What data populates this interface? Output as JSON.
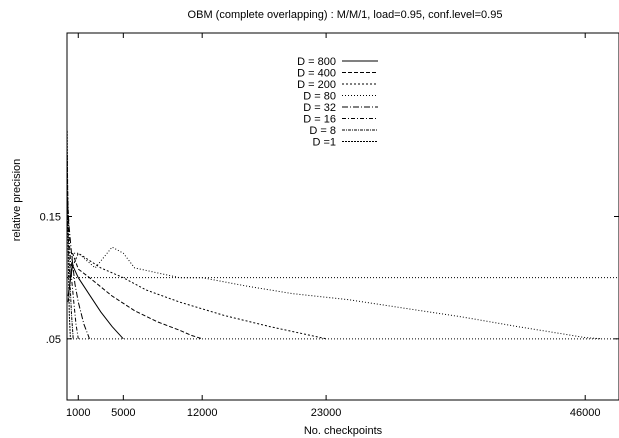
{
  "chart_data": {
    "type": "line",
    "title": "OBM (complete overlapping) : M/M/1, load=0.95, conf.level=0.95",
    "xlabel": "No. checkpoints",
    "ylabel": "relative precision",
    "xlim": [
      0,
      49000
    ],
    "ylim": [
      0,
      0.3
    ],
    "x_ticks": [
      {
        "value": 1000,
        "label": "1000"
      },
      {
        "value": 5000,
        "label": "5000"
      },
      {
        "value": 12000,
        "label": "12000"
      },
      {
        "value": 23000,
        "label": "23000"
      },
      {
        "value": 46000,
        "label": "46000"
      }
    ],
    "y_ticks": [
      {
        "value": 0.05,
        "label": ".05"
      },
      {
        "value": 0.15,
        "label": "0.15"
      }
    ],
    "hlines": [
      {
        "value": 0.05,
        "style": "dotted"
      },
      {
        "value": 0.1,
        "style": "dotted"
      }
    ],
    "grid": false,
    "legend_position": "top-center",
    "series": [
      {
        "name": "D = 800",
        "dash": "",
        "x": [
          100,
          500,
          1000,
          2000,
          3000,
          4000,
          5000
        ],
        "y": [
          0.085,
          0.11,
          0.1,
          0.086,
          0.072,
          0.06,
          0.05
        ]
      },
      {
        "name": "D = 400",
        "dash": "4 2",
        "x": [
          100,
          500,
          1000,
          2000,
          4000,
          6000,
          8000,
          10000,
          11000,
          12000
        ],
        "y": [
          0.08,
          0.12,
          0.107,
          0.1,
          0.085,
          0.073,
          0.064,
          0.057,
          0.053,
          0.05
        ]
      },
      {
        "name": "D = 200",
        "dash": "2 2",
        "x": [
          100,
          1000,
          3000,
          5000,
          7000,
          10000,
          14000,
          18000,
          21000,
          23000
        ],
        "y": [
          0.1,
          0.12,
          0.108,
          0.1,
          0.09,
          0.08,
          0.069,
          0.06,
          0.054,
          0.05
        ]
      },
      {
        "name": "D = 80",
        "dash": "1 2",
        "x": [
          100,
          1000,
          2500,
          4000,
          5000,
          6000,
          8000,
          10000,
          12000,
          16000,
          20000,
          25000,
          30000,
          35000,
          40000,
          44000,
          46000,
          47500
        ],
        "y": [
          0.12,
          0.12,
          0.108,
          0.125,
          0.12,
          0.108,
          0.104,
          0.1,
          0.1,
          0.093,
          0.087,
          0.082,
          0.075,
          0.068,
          0.06,
          0.054,
          0.051,
          0.05
        ]
      },
      {
        "name": "D = 32",
        "dash": "6 2 1 2",
        "x": [
          50,
          200,
          400,
          700,
          1000,
          1500,
          2000
        ],
        "y": [
          0.16,
          0.14,
          0.12,
          0.095,
          0.08,
          0.062,
          0.05
        ]
      },
      {
        "name": "D = 16",
        "dash": "4 2 1 2",
        "x": [
          50,
          200,
          400,
          600,
          800,
          1000
        ],
        "y": [
          0.17,
          0.13,
          0.1,
          0.08,
          0.062,
          0.05
        ]
      },
      {
        "name": "D = 8",
        "dash": "3 1 1 1",
        "x": [
          30,
          100,
          250,
          400,
          550
        ],
        "y": [
          0.2,
          0.14,
          0.1,
          0.07,
          0.05
        ]
      },
      {
        "name": "D =1",
        "dash": "2 1",
        "x": [
          20,
          60,
          120,
          200,
          300
        ],
        "y": [
          0.22,
          0.16,
          0.11,
          0.07,
          0.05
        ]
      }
    ]
  }
}
